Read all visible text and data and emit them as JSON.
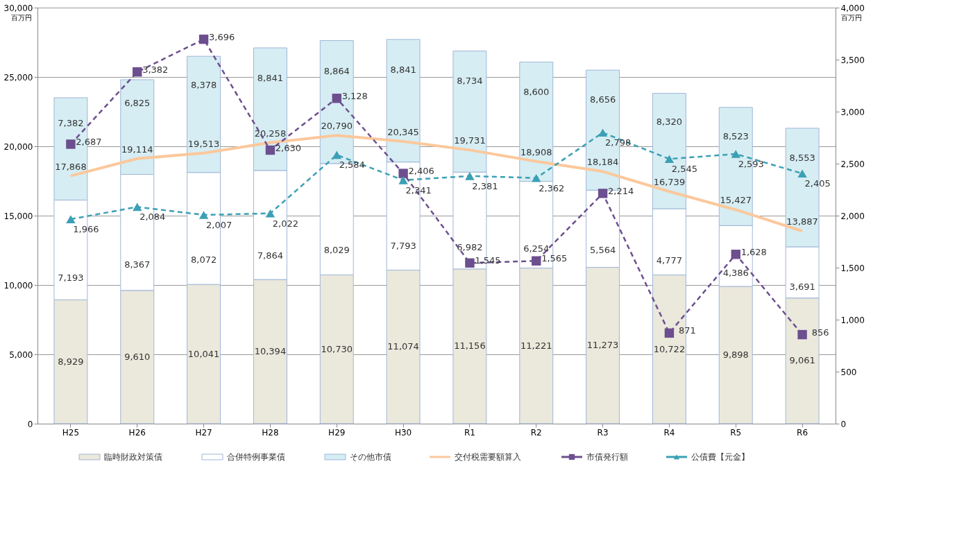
{
  "chart_data": {
    "type": "bar",
    "stacked": true,
    "categories": [
      "H25",
      "H26",
      "H27",
      "H28",
      "H29",
      "H30",
      "R1",
      "R2",
      "R3",
      "R4",
      "R5",
      "R6"
    ],
    "series": [
      {
        "name": "臨時財政対策債",
        "color": "#ebe8dc",
        "values": [
          8929,
          9610,
          10041,
          10394,
          10730,
          11074,
          11156,
          11221,
          11273,
          10722,
          9898,
          9061
        ],
        "value_labels": [
          "8,929",
          "9,610",
          "10,041",
          "10,394",
          "10,730",
          "11,074",
          "11,156",
          "11,221",
          "11,273",
          "10,722",
          "9,898",
          "9,061"
        ]
      },
      {
        "name": "合併特例事業債",
        "color": "#ffffff",
        "values": [
          7193,
          8367,
          8072,
          7864,
          8029,
          7793,
          6982,
          6254,
          5564,
          4777,
          4386,
          3691
        ],
        "value_labels": [
          "7,193",
          "8,367",
          "8,072",
          "7,864",
          "8,029",
          "7,793",
          "6,982",
          "6,254",
          "5,564",
          "4,777",
          "4,386",
          "3,691"
        ]
      },
      {
        "name": "その他市債",
        "color": "#d6edf3",
        "values": [
          7382,
          6825,
          8378,
          8841,
          8864,
          8841,
          8734,
          8600,
          8656,
          8320,
          8523,
          8553
        ],
        "value_labels": [
          "7,382",
          "6,825",
          "8,378",
          "8,841",
          "8,864",
          "8,841",
          "8,734",
          "8,600",
          "8,656",
          "8,320",
          "8,523",
          "8,553"
        ]
      },
      {
        "name": "交付税需要額算入",
        "type": "line",
        "color": "#fbc89c",
        "line_style": "solid",
        "values": [
          17868,
          19114,
          19513,
          20258,
          20790,
          20345,
          19731,
          18908,
          18184,
          16739,
          15427,
          13887
        ],
        "value_labels": [
          "17,868",
          "19,114",
          "19,513",
          "20,258",
          "20,790",
          "20,345",
          "19,731",
          "18,908",
          "18,184",
          "16,739",
          "15,427",
          "13,887"
        ]
      },
      {
        "name": "市債発行額",
        "type": "line",
        "axis": "y2",
        "color": "#6c4f8f",
        "marker": "square",
        "line_style": "dashed",
        "values": [
          2687,
          3382,
          3696,
          2630,
          3128,
          2406,
          1545,
          1565,
          2214,
          871,
          1628,
          856
        ],
        "value_labels": [
          "2,687",
          "3,382",
          "3,696",
          "2,630",
          "3,128",
          "2,406",
          "1,545",
          "1,565",
          "2,214",
          "871",
          "1,628",
          "856"
        ]
      },
      {
        "name": "公債費【元金】",
        "type": "line",
        "axis": "y2",
        "color": "#3ba0b5",
        "marker": "triangle",
        "line_style": "dashed",
        "values": [
          1966,
          2084,
          2007,
          2022,
          2584,
          2341,
          2381,
          2362,
          2798,
          2545,
          2593,
          2405
        ],
        "value_labels": [
          "1,966",
          "2,084",
          "2,007",
          "2,022",
          "2,584",
          "2,341",
          "2,381",
          "2,362",
          "2,798",
          "2,545",
          "2,593",
          "2,405"
        ]
      }
    ],
    "ylim": [
      0,
      30000
    ],
    "yticks": [
      0,
      {
        "value": 5000,
        "label": "5,000"
      },
      {
        "value": 10000,
        "label": "10,000"
      },
      {
        "value": 15000,
        "label": "15,000"
      },
      {
        "value": 20000,
        "label": "20,000"
      },
      {
        "value": 25000,
        "label": "25,000"
      },
      {
        "value": 30000,
        "label": "30,000"
      }
    ],
    "y2lim": [
      0,
      4000
    ],
    "y2ticks": [
      0,
      500,
      {
        "value": 1000,
        "label": "1,000"
      },
      {
        "value": 1500,
        "label": "1,500"
      },
      {
        "value": 2000,
        "label": "2,000"
      },
      {
        "value": 2500,
        "label": "2,500"
      },
      {
        "value": 3000,
        "label": "3,000"
      },
      {
        "value": 3500,
        "label": "3,500"
      },
      {
        "value": 4000,
        "label": "4,000"
      }
    ],
    "annotations": [
      "百万円",
      "百万円"
    ],
    "grid": "y",
    "legend": "bottom"
  }
}
